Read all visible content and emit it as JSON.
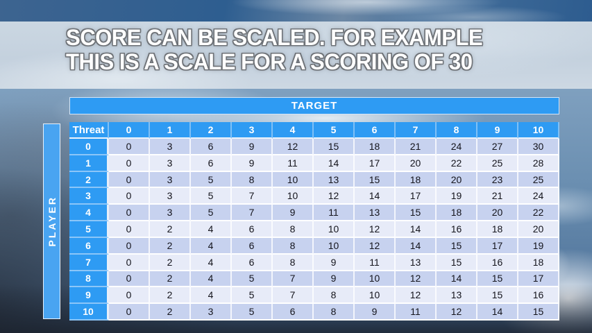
{
  "slide": {
    "title_line1": "SCORE CAN BE SCALED. FOR EXAMPLE",
    "title_line2": "THIS IS A SCALE FOR A SCORING OF 30"
  },
  "table": {
    "target_label": "TARGET",
    "player_label": "PLAYER",
    "corner_label": "Threat",
    "columns": [
      "0",
      "1",
      "2",
      "3",
      "4",
      "5",
      "6",
      "7",
      "8",
      "9",
      "10"
    ],
    "rows": [
      {
        "label": "0",
        "values": [
          0,
          3,
          6,
          9,
          12,
          15,
          18,
          21,
          24,
          27,
          30
        ]
      },
      {
        "label": "1",
        "values": [
          0,
          3,
          6,
          9,
          11,
          14,
          17,
          20,
          22,
          25,
          28
        ]
      },
      {
        "label": "2",
        "values": [
          0,
          3,
          5,
          8,
          10,
          13,
          15,
          18,
          20,
          23,
          25
        ]
      },
      {
        "label": "3",
        "values": [
          0,
          3,
          5,
          7,
          10,
          12,
          14,
          17,
          19,
          21,
          24
        ]
      },
      {
        "label": "4",
        "values": [
          0,
          3,
          5,
          7,
          9,
          11,
          13,
          15,
          18,
          20,
          22
        ]
      },
      {
        "label": "5",
        "values": [
          0,
          2,
          4,
          6,
          8,
          10,
          12,
          14,
          16,
          18,
          20
        ]
      },
      {
        "label": "6",
        "values": [
          0,
          2,
          4,
          6,
          8,
          10,
          12,
          14,
          15,
          17,
          19
        ]
      },
      {
        "label": "7",
        "values": [
          0,
          2,
          4,
          6,
          8,
          9,
          11,
          13,
          15,
          16,
          18
        ]
      },
      {
        "label": "8",
        "values": [
          0,
          2,
          4,
          5,
          7,
          9,
          10,
          12,
          14,
          15,
          17
        ]
      },
      {
        "label": "9",
        "values": [
          0,
          2,
          4,
          5,
          7,
          8,
          10,
          12,
          13,
          15,
          16
        ]
      },
      {
        "label": "10",
        "values": [
          0,
          2,
          3,
          5,
          6,
          8,
          9,
          11,
          12,
          14,
          15
        ]
      }
    ]
  },
  "colors": {
    "accent_blue": "#2E9BF3",
    "player_blue": "#49A4F1",
    "band_dark": "#C7D2EF",
    "band_light": "#E7EBF8",
    "body_text": "#14141C"
  }
}
